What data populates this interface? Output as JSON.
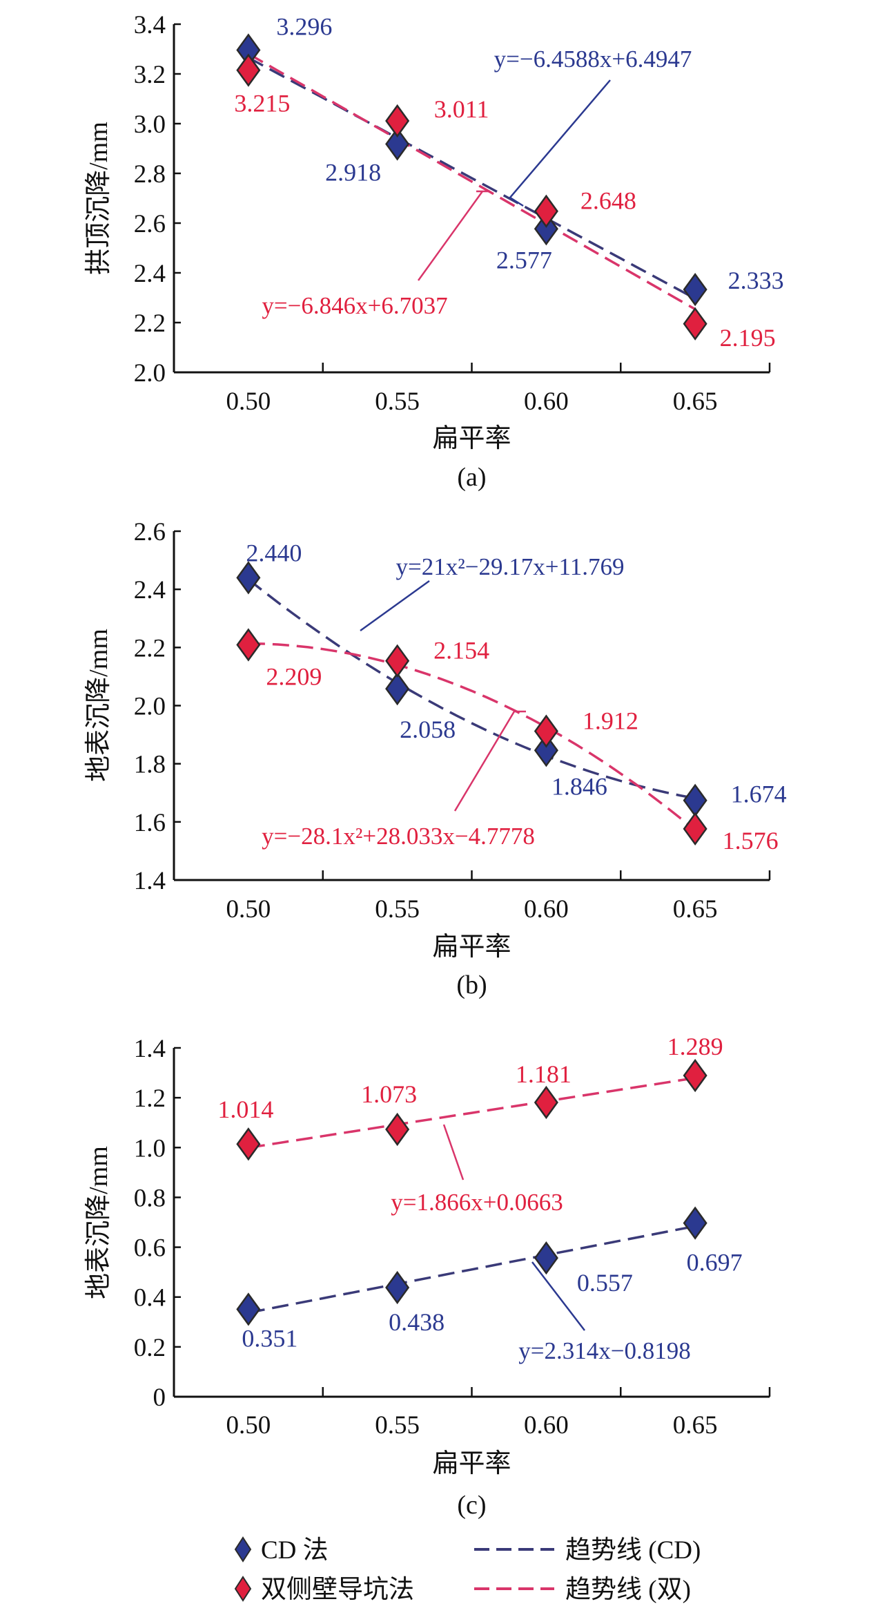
{
  "colors": {
    "cd": "#2b3990",
    "cd_trend": "#3a3a78",
    "dual": "#e0203f",
    "dual_trend": "#d9356a",
    "dual_label": "#e0203f",
    "axis": "#111111"
  },
  "legend": {
    "items": [
      {
        "label": "CD 法",
        "kind": "marker",
        "series": "cd"
      },
      {
        "label": "趋势线 (CD)",
        "kind": "line",
        "series": "cd"
      },
      {
        "label": "双侧壁导坑法",
        "kind": "marker",
        "series": "dual"
      },
      {
        "label": "趋势线 (双)",
        "kind": "line",
        "series": "dual"
      }
    ]
  },
  "chart_data": [
    {
      "type": "scatter",
      "caption": "(a)",
      "xlabel": "扁平率",
      "ylabel": "拱顶沉降/mm",
      "x": [
        0.5,
        0.55,
        0.6,
        0.65
      ],
      "xlim": [
        0.475,
        0.675
      ],
      "xticklabels": [
        "0.50",
        "0.55",
        "0.60",
        "0.65"
      ],
      "ylim": [
        2.0,
        3.4
      ],
      "yticks": [
        2.0,
        2.2,
        2.4,
        2.6,
        2.8,
        3.0,
        3.2,
        3.4
      ],
      "yticklabels": [
        "2.0",
        "2.2",
        "2.4",
        "2.6",
        "2.8",
        "3.0",
        "3.2",
        "3.4"
      ],
      "series": [
        {
          "key": "cd",
          "name": "CD 法",
          "values": [
            3.296,
            2.918,
            2.577,
            2.333
          ],
          "labels": [
            "3.296",
            "2.918",
            "2.577",
            "2.333"
          ]
        },
        {
          "key": "dual",
          "name": "双侧壁导坑法",
          "values": [
            3.215,
            3.011,
            2.648,
            2.195
          ],
          "labels": [
            "3.215",
            "3.011",
            "2.648",
            "2.195"
          ]
        }
      ],
      "trendlines": [
        {
          "key": "cd",
          "name": "趋势线 (CD)",
          "equation": "y=−6.4588x+6.4947",
          "coeffs": [
            0,
            -6.4588,
            6.4947
          ]
        },
        {
          "key": "dual",
          "name": "趋势线 (双)",
          "equation": "y=−6.846x+6.7037",
          "coeffs": [
            0,
            -6.846,
            6.7037
          ]
        }
      ]
    },
    {
      "type": "scatter",
      "caption": "(b)",
      "xlabel": "扁平率",
      "ylabel": "地表沉降/mm",
      "x": [
        0.5,
        0.55,
        0.6,
        0.65
      ],
      "xlim": [
        0.475,
        0.675
      ],
      "xticklabels": [
        "0.50",
        "0.55",
        "0.60",
        "0.65"
      ],
      "ylim": [
        1.4,
        2.6
      ],
      "yticks": [
        1.4,
        1.6,
        1.8,
        2.0,
        2.2,
        2.4,
        2.6
      ],
      "yticklabels": [
        "1.4",
        "1.6",
        "1.8",
        "2.0",
        "2.2",
        "2.4",
        "2.6"
      ],
      "series": [
        {
          "key": "cd",
          "name": "CD 法",
          "values": [
            2.44,
            2.058,
            1.846,
            1.674
          ],
          "labels": [
            "2.440",
            "2.058",
            "1.846",
            "1.674"
          ]
        },
        {
          "key": "dual",
          "name": "双侧壁导坑法",
          "values": [
            2.209,
            2.154,
            1.912,
            1.576
          ],
          "labels": [
            "2.209",
            "2.154",
            "1.912",
            "1.576"
          ]
        }
      ],
      "trendlines": [
        {
          "key": "cd",
          "name": "趋势线 (CD)",
          "equation": "y=21x²−29.17x+11.769",
          "coeffs": [
            21,
            -29.17,
            11.769
          ]
        },
        {
          "key": "dual",
          "name": "趋势线 (双)",
          "equation": "y=−28.1x²+28.033x−4.7778",
          "coeffs": [
            -28.1,
            28.033,
            -4.7778
          ]
        }
      ]
    },
    {
      "type": "scatter",
      "caption": "(c)",
      "xlabel": "扁平率",
      "ylabel": "地表沉降/mm",
      "x": [
        0.5,
        0.55,
        0.6,
        0.65
      ],
      "xlim": [
        0.475,
        0.675
      ],
      "xticklabels": [
        "0.50",
        "0.55",
        "0.60",
        "0.65"
      ],
      "ylim": [
        0,
        1.4
      ],
      "yticks": [
        0,
        0.2,
        0.4,
        0.6,
        0.8,
        1.0,
        1.2,
        1.4
      ],
      "yticklabels": [
        "0",
        "0.2",
        "0.4",
        "0.6",
        "0.8",
        "1.0",
        "1.2",
        "1.4"
      ],
      "series": [
        {
          "key": "cd",
          "name": "CD 法",
          "values": [
            0.351,
            0.438,
            0.557,
            0.697
          ],
          "labels": [
            "0.351",
            "0.438",
            "0.557",
            "0.697"
          ]
        },
        {
          "key": "dual",
          "name": "双侧壁导坑法",
          "values": [
            1.014,
            1.073,
            1.181,
            1.289
          ],
          "labels": [
            "1.014",
            "1.073",
            "1.181",
            "1.289"
          ]
        }
      ],
      "trendlines": [
        {
          "key": "cd",
          "name": "趋势线 (CD)",
          "equation": "y=2.314x−0.8198",
          "coeffs": [
            0,
            2.314,
            -0.8198
          ]
        },
        {
          "key": "dual",
          "name": "趋势线 (双)",
          "equation": "y=1.866x+0.0663",
          "coeffs": [
            0,
            1.866,
            0.0663
          ]
        }
      ]
    }
  ]
}
